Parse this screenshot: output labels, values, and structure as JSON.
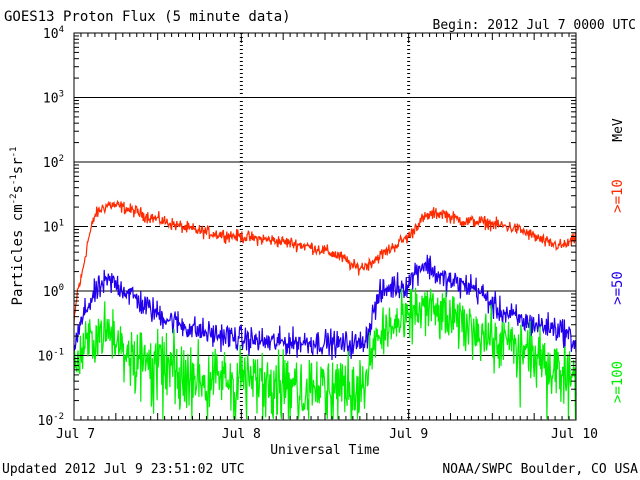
{
  "chart_data": {
    "type": "line",
    "title": "GOES13 Proton Flux (5 minute data)",
    "begin_label": "Begin: 2012 Jul 7 0000 UTC",
    "xlabel": "Universal Time",
    "ylabel": "Particles cm⁻²s⁻¹sr⁻¹",
    "ylabel_parts": [
      "Particles cm",
      "-2",
      "s",
      "-1",
      "sr",
      "-1"
    ],
    "units_label": "MeV",
    "x_unit": "hours since 2012 Jul 7 0000 UTC",
    "xlim": [
      0,
      72
    ],
    "ylim": [
      0.01,
      10000
    ],
    "yscale": "log",
    "x_ticks": [
      {
        "x": 0,
        "label": "Jul 7"
      },
      {
        "x": 24,
        "label": "Jul 8"
      },
      {
        "x": 48,
        "label": "Jul 9"
      },
      {
        "x": 72,
        "label": "Jul 10"
      }
    ],
    "y_ticks": [
      {
        "value": 0.01,
        "base": "10",
        "exp": "-2"
      },
      {
        "value": 0.1,
        "base": "10",
        "exp": "-1"
      },
      {
        "value": 1,
        "base": "10",
        "exp": "0"
      },
      {
        "value": 10,
        "base": "10",
        "exp": "1"
      },
      {
        "value": 100,
        "base": "10",
        "exp": "2"
      },
      {
        "value": 1000,
        "base": "10",
        "exp": "3"
      },
      {
        "value": 10000,
        "base": "10",
        "exp": "4"
      }
    ],
    "solid_hlines": [
      0.1,
      1,
      100,
      1000
    ],
    "dashed_hline": 10,
    "series": [
      {
        "name": ">=10",
        "color": "#ff2a00",
        "noise": 0.08,
        "x": [
          0,
          0.5,
          1,
          1.5,
          2,
          3,
          4,
          5,
          6,
          7,
          8,
          9,
          10,
          12,
          14,
          16,
          18,
          20,
          22,
          24,
          26,
          28,
          30,
          32,
          34,
          36,
          38,
          39,
          40,
          41,
          42,
          43,
          44,
          45,
          46,
          47,
          48,
          48.5,
          49,
          50,
          51,
          52,
          53,
          54,
          55,
          56,
          57,
          58,
          59,
          60,
          61,
          62,
          63,
          64,
          66,
          68,
          70,
          71,
          72
        ],
        "values": [
          0.3,
          1.0,
          1.5,
          3.0,
          6.0,
          15,
          19,
          22,
          21,
          20,
          18,
          17,
          15,
          13,
          11,
          9.5,
          8.5,
          7.8,
          7.3,
          7.0,
          6.5,
          6.2,
          5.8,
          5.3,
          4.8,
          4.2,
          3.5,
          3.0,
          2.4,
          2.3,
          2.5,
          3.0,
          3.6,
          4.2,
          5.0,
          6.0,
          7.0,
          8.0,
          10,
          13,
          15,
          16,
          16,
          14,
          13,
          12,
          12,
          12,
          11.5,
          11,
          10.5,
          10,
          9.5,
          8.8,
          7.0,
          5.5,
          5.0,
          5.5,
          6.5
        ]
      },
      {
        "name": ">=50",
        "color": "#2200ee",
        "noise": 0.17,
        "x": [
          0,
          0.5,
          1,
          1.5,
          2,
          3,
          4,
          5,
          6,
          7,
          8,
          9,
          10,
          12,
          14,
          16,
          18,
          20,
          22,
          24,
          26,
          28,
          30,
          32,
          34,
          36,
          38,
          40,
          41,
          42,
          42.5,
          43,
          44,
          45,
          46,
          47,
          48,
          49,
          50,
          51,
          52,
          53,
          54,
          55,
          56,
          57,
          58,
          59,
          60,
          61,
          62,
          63,
          64,
          66,
          68,
          70,
          71,
          72
        ],
        "values": [
          0.12,
          0.2,
          0.3,
          0.45,
          0.6,
          0.9,
          1.2,
          1.4,
          1.3,
          1.1,
          0.9,
          0.75,
          0.6,
          0.45,
          0.35,
          0.28,
          0.24,
          0.21,
          0.2,
          0.18,
          0.17,
          0.16,
          0.16,
          0.16,
          0.16,
          0.16,
          0.15,
          0.15,
          0.15,
          0.2,
          0.3,
          0.5,
          0.9,
          1.1,
          1.2,
          1.2,
          1.3,
          2.0,
          2.6,
          2.4,
          1.8,
          1.5,
          1.4,
          1.3,
          1.2,
          1.2,
          1.0,
          0.8,
          0.6,
          0.5,
          0.45,
          0.4,
          0.35,
          0.3,
          0.28,
          0.25,
          0.2,
          0.15
        ]
      },
      {
        "name": ">=100",
        "color": "#00ee00",
        "noise": 0.35,
        "x": [
          0,
          0.5,
          1,
          1.5,
          2,
          3,
          4,
          5,
          6,
          7,
          8,
          10,
          12,
          14,
          16,
          18,
          20,
          22,
          24,
          26,
          28,
          30,
          32,
          34,
          36,
          38,
          40,
          41,
          42,
          42.5,
          43,
          44,
          45,
          46,
          47,
          48,
          49,
          50,
          51,
          52,
          53,
          54,
          55,
          56,
          57,
          58,
          59,
          60,
          62,
          64,
          66,
          68,
          70,
          72
        ],
        "values": [
          0.05,
          0.08,
          0.1,
          0.13,
          0.15,
          0.2,
          0.24,
          0.22,
          0.2,
          0.16,
          0.13,
          0.1,
          0.08,
          0.07,
          0.06,
          0.06,
          0.05,
          0.05,
          0.05,
          0.05,
          0.05,
          0.05,
          0.04,
          0.04,
          0.04,
          0.04,
          0.04,
          0.04,
          0.04,
          0.08,
          0.15,
          0.2,
          0.25,
          0.3,
          0.3,
          0.35,
          0.5,
          0.55,
          0.52,
          0.45,
          0.4,
          0.35,
          0.32,
          0.3,
          0.27,
          0.25,
          0.22,
          0.18,
          0.15,
          0.12,
          0.1,
          0.08,
          0.07,
          0.05
        ]
      }
    ]
  },
  "footer": {
    "updated": "Updated 2012 Jul  9 23:51:02 UTC",
    "credit": "NOAA/SWPC Boulder, CO USA"
  }
}
